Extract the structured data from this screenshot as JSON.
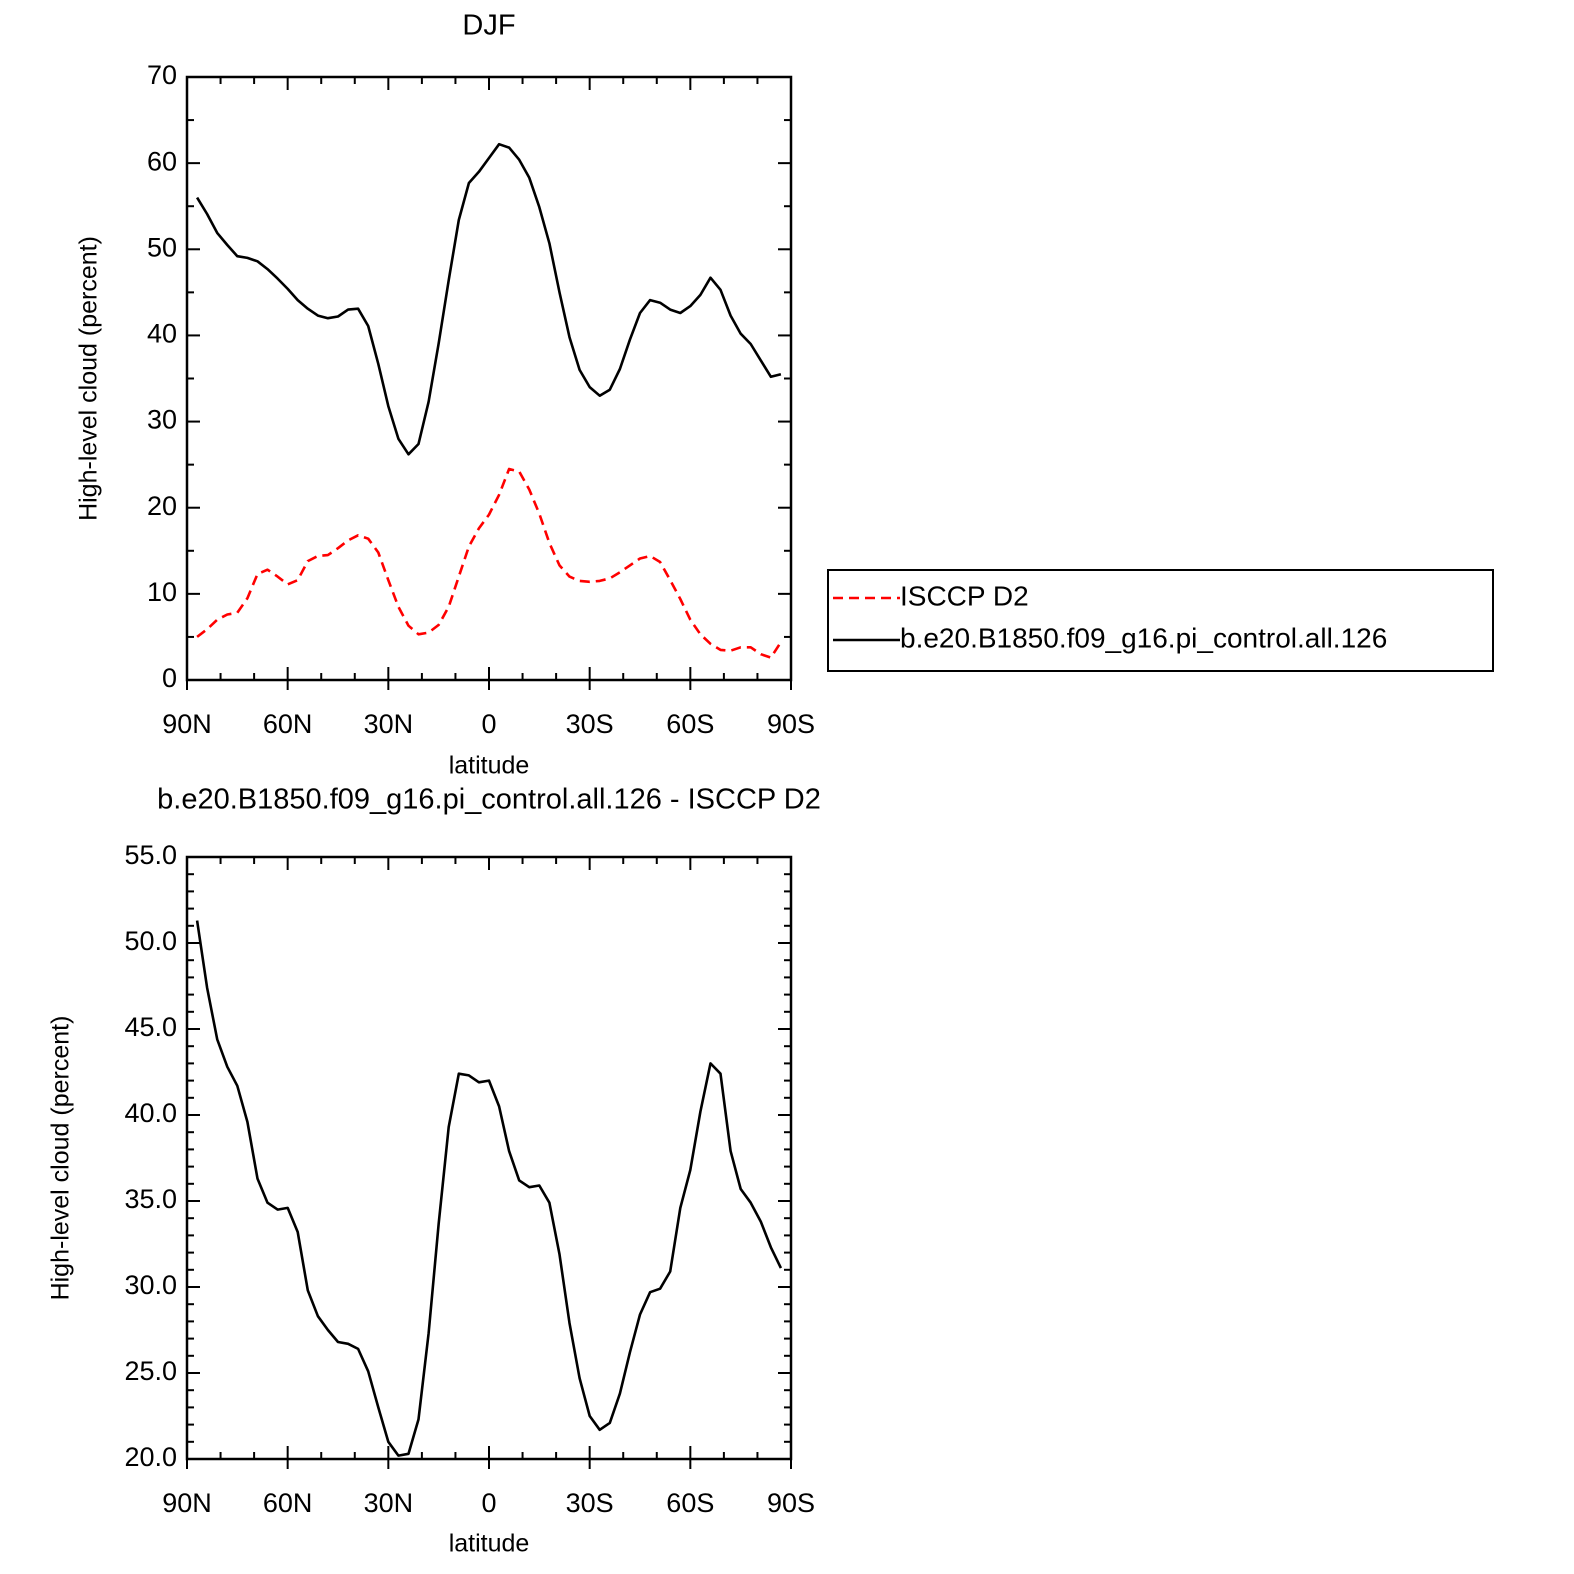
{
  "chart_data": [
    {
      "type": "line",
      "title": "DJF",
      "xlabel": "latitude",
      "ylabel": "High-level cloud (percent)",
      "x": [
        87,
        84,
        81,
        78,
        75,
        72,
        69,
        66,
        63,
        60,
        57,
        54,
        51,
        48,
        45,
        42,
        39,
        36,
        33,
        30,
        27,
        24,
        21,
        18,
        15,
        12,
        9,
        6,
        3,
        0,
        -3,
        -6,
        -9,
        -12,
        -15,
        -18,
        -21,
        -24,
        -27,
        -30,
        -33,
        -36,
        -39,
        -42,
        -45,
        -48,
        -51,
        -54,
        -57,
        -60,
        -63,
        -66,
        -69,
        -72,
        -75,
        -78,
        -81,
        -84,
        -87
      ],
      "series": [
        {
          "name": "ISCCP D2",
          "color": "#ff0000",
          "dashed": true,
          "values": [
            5.0,
            5.9,
            7.0,
            7.6,
            7.8,
            9.5,
            12.3,
            12.8,
            12.0,
            11.1,
            11.6,
            13.8,
            14.4,
            14.5,
            15.3,
            16.2,
            16.8,
            16.4,
            14.8,
            11.6,
            8.5,
            6.3,
            5.3,
            5.5,
            6.4,
            8.5,
            12.0,
            15.5,
            17.6,
            19.2,
            21.5,
            24.5,
            24.2,
            22.1,
            19.3,
            15.9,
            13.3,
            12.0,
            11.5,
            11.4,
            11.5,
            11.8,
            12.5,
            13.3,
            14.1,
            14.4,
            13.7,
            11.6,
            9.4,
            7.0,
            5.3,
            4.2,
            3.5,
            3.4,
            3.8,
            3.8,
            3.0,
            2.6,
            4.4
          ]
        },
        {
          "name": "b.e20.B1850.f09_g16.pi_control.all.126",
          "color": "#000000",
          "dashed": false,
          "values": [
            56.0,
            54.1,
            51.9,
            50.5,
            49.2,
            49.0,
            48.6,
            47.7,
            46.6,
            45.4,
            44.1,
            43.1,
            42.3,
            42.0,
            42.2,
            43.0,
            43.1,
            41.1,
            36.7,
            31.8,
            28.0,
            26.2,
            27.4,
            32.3,
            39.1,
            46.4,
            53.4,
            57.7,
            59.0,
            60.6,
            62.2,
            61.8,
            60.4,
            58.3,
            54.9,
            50.7,
            45.0,
            39.8,
            36.0,
            34.0,
            33.0,
            33.7,
            36.1,
            39.5,
            42.6,
            44.1,
            43.8,
            43.0,
            42.6,
            43.4,
            44.7,
            46.7,
            45.3,
            42.3,
            40.2,
            39.0,
            37.1,
            35.2,
            35.5
          ]
        }
      ],
      "xlim": [
        90,
        -90
      ],
      "xticks": [
        {
          "value": 90,
          "label": "90N"
        },
        {
          "value": 60,
          "label": "60N"
        },
        {
          "value": 30,
          "label": "30N"
        },
        0,
        {
          "value": -30,
          "label": "30S"
        },
        {
          "value": -60,
          "label": "60S"
        },
        {
          "value": -90,
          "label": "90S"
        }
      ],
      "ylim": [
        0,
        70
      ],
      "yticks": [
        0,
        10,
        20,
        30,
        40,
        50,
        60,
        70
      ],
      "legend": "right"
    },
    {
      "type": "line",
      "title": "b.e20.B1850.f09_g16.pi_control.all.126 - ISCCP D2",
      "xlabel": "latitude",
      "ylabel": "High-level cloud (percent)",
      "x": [
        87,
        84,
        81,
        78,
        75,
        72,
        69,
        66,
        63,
        60,
        57,
        54,
        51,
        48,
        45,
        42,
        39,
        36,
        33,
        30,
        27,
        24,
        21,
        18,
        15,
        12,
        9,
        6,
        3,
        0,
        -3,
        -6,
        -9,
        -12,
        -15,
        -18,
        -21,
        -24,
        -27,
        -30,
        -33,
        -36,
        -39,
        -42,
        -45,
        -48,
        -51,
        -54,
        -57,
        -60,
        -63,
        -66,
        -69,
        -72,
        -75,
        -78,
        -81,
        -84,
        -87
      ],
      "values": [
        51.3,
        47.4,
        44.4,
        42.8,
        41.7,
        39.6,
        36.3,
        34.9,
        34.5,
        34.6,
        33.2,
        29.8,
        28.3,
        27.5,
        26.8,
        26.7,
        26.4,
        25.1,
        23.0,
        21.0,
        20.2,
        20.3,
        22.3,
        27.3,
        33.7,
        39.3,
        42.4,
        42.3,
        41.9,
        42.0,
        40.5,
        37.9,
        36.2,
        35.8,
        35.9,
        34.9,
        31.9,
        27.9,
        24.7,
        22.5,
        21.7,
        22.1,
        23.8,
        26.2,
        28.4,
        29.7,
        29.9,
        30.9,
        34.6,
        36.8,
        40.2,
        43.0,
        42.4,
        37.9,
        35.7,
        34.9,
        33.8,
        32.3,
        31.1
      ],
      "color": "#000000",
      "xlim": [
        90,
        -90
      ],
      "xticks": [
        {
          "value": 90,
          "label": "90N"
        },
        {
          "value": 60,
          "label": "60N"
        },
        {
          "value": 30,
          "label": "30N"
        },
        0,
        {
          "value": -30,
          "label": "30S"
        },
        {
          "value": -60,
          "label": "60S"
        },
        {
          "value": -90,
          "label": "90S"
        }
      ],
      "ylim": [
        20,
        55
      ],
      "yticks": [
        {
          "value": 20,
          "label": "20.0"
        },
        {
          "value": 25,
          "label": "25.0"
        },
        {
          "value": 30,
          "label": "30.0"
        },
        {
          "value": 35,
          "label": "35.0"
        },
        {
          "value": 40,
          "label": "40.0"
        },
        {
          "value": 45,
          "label": "45.0"
        },
        {
          "value": 50,
          "label": "50.0"
        },
        {
          "value": 55,
          "label": "55.0"
        }
      ]
    }
  ]
}
